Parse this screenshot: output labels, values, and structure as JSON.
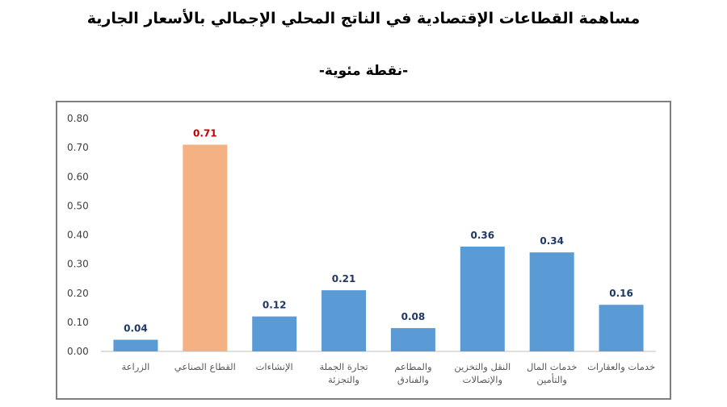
{
  "page": {
    "title": "مساهمة القطاعات الإقتصادية في الناتج المحلي الإجمالي بالأسعار الجارية",
    "subtitle": "-نقطة مئوية-"
  },
  "chart_data": {
    "type": "bar",
    "categories": [
      [
        "الزراعة"
      ],
      [
        "القطاع الصناعي"
      ],
      [
        "الإنشاءات"
      ],
      [
        "تجارة الجملة",
        "والتجزئة"
      ],
      [
        "والمطاعم",
        "والفنادق"
      ],
      [
        "النقل والتخزين",
        "والإتصالات"
      ],
      [
        "خدمات المال",
        "والتأمين"
      ],
      [
        "خدمات والعقارات"
      ]
    ],
    "values": [
      0.04,
      0.71,
      0.12,
      0.21,
      0.08,
      0.36,
      0.34,
      0.16
    ],
    "data_labels": [
      "0.04",
      "0.71",
      "0.12",
      "0.21",
      "0.08",
      "0.36",
      "0.34",
      "0.16"
    ],
    "highlight_index": 1,
    "ylim": [
      0,
      0.8
    ],
    "yticks": [
      "0.00",
      "0.10",
      "0.20",
      "0.30",
      "0.40",
      "0.50",
      "0.60",
      "0.70",
      "0.80"
    ],
    "grid": false,
    "legend": "none",
    "colors": {
      "bar": "#5b9bd5",
      "highlight": "#f4b183",
      "label": "#1f3864",
      "highlight_label": "#c00000"
    }
  }
}
